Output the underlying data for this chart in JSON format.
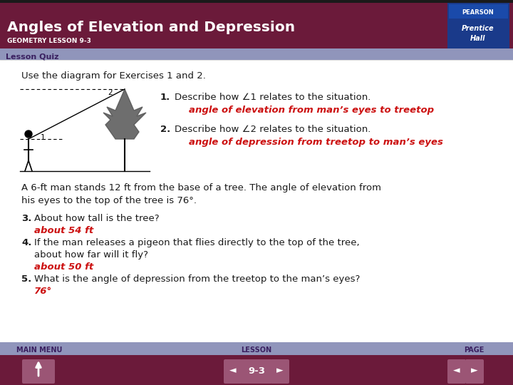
{
  "title": "Angles of Elevation and Depression",
  "subtitle": "GEOMETRY LESSON 9-3",
  "header_bg": "#6b1a3a",
  "header_text_color": "#ffffff",
  "lesson_quiz_bg": "#9095bb",
  "lesson_quiz_text": "Lesson Quiz",
  "lesson_quiz_text_color": "#3a2060",
  "body_bg": "#ffffff",
  "body_text_color": "#1a1a1a",
  "red_color": "#cc1111",
  "footer_bg": "#9095bb",
  "footer_nav_bg": "#6b1a3a",
  "nav_button_color": "#9b5575",
  "nav_text": "9-3",
  "intro_text": "Use the diagram for Exercises 1 and 2.",
  "q1_num": "1.",
  "q1_text": "Describe how ∠1 relates to the situation.",
  "q1_answer": "angle of elevation from man’s eyes to treetop",
  "q2_num": "2.",
  "q2_text": "Describe how ∠2 relates to the situation.",
  "q2_answer": "angle of depression from treetop to man’s eyes",
  "para_text": "A 6-ft man stands 12 ft from the base of a tree. The angle of elevation from\nhis eyes to the top of the tree is 76°.",
  "q3_num": "3.",
  "q3_text": "About how tall is the tree?",
  "q3_answer": "about 54 ft",
  "q4_num": "4.",
  "q4_text_line1": "If the man releases a pigeon that flies directly to the top of the tree,",
  "q4_text_line2": "about how far will it fly?",
  "q4_answer": "about 50 ft",
  "q5_num": "5.",
  "q5_text": "What is the angle of depression from the treetop to the man’s eyes?",
  "q5_answer": "76°",
  "main_menu_text": "MAIN MENU",
  "lesson_nav_text": "LESSON",
  "page_text": "PAGE",
  "pearson_top": "PEARSON",
  "pearson_mid": "Prentice",
  "pearson_bot": "Hall",
  "pearson_bg": "#1a3a8a",
  "header_dark_strip": "#1a1a1a"
}
